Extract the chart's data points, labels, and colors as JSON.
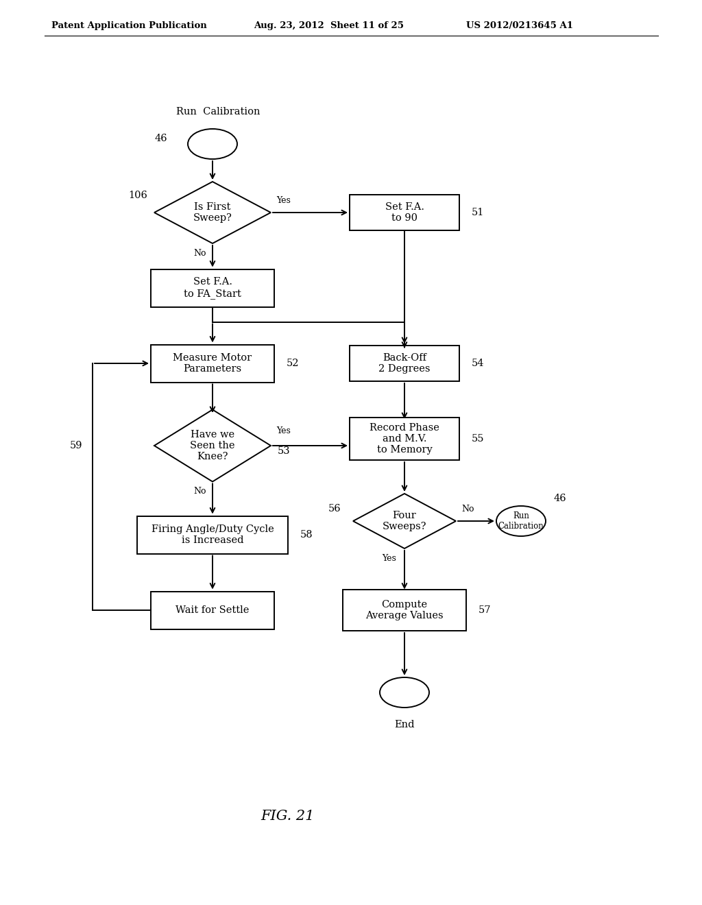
{
  "bg_color": "#ffffff",
  "header_left": "Patent Application Publication",
  "header_mid": "Aug. 23, 2012  Sheet 11 of 25",
  "header_right": "US 2012/0213645 A1",
  "fig_label": "FIG. 21"
}
